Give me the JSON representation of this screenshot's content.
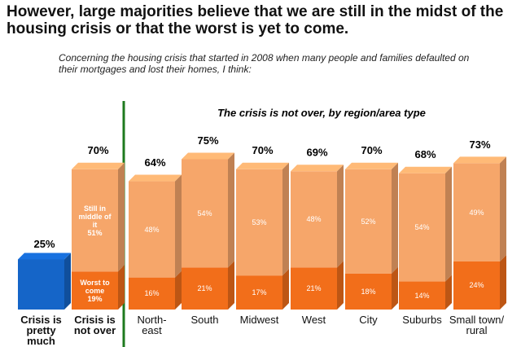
{
  "chart_data": {
    "type": "bar",
    "stacked": true,
    "title": "However, large majorities believe that we are still in the midst of the housing crisis or that the worst is yet to come.",
    "subtitle": "Concerning the housing crisis that started in 2008 when many people and families defaulted on their mortgages and lost their homes, I think:",
    "annotation": "The crisis is not over, by region/area type",
    "categories": [
      "Crisis is pretty much over",
      "Crisis is not over",
      "North-east",
      "South",
      "Midwest",
      "West",
      "City",
      "Suburbs",
      "Small town/ rural"
    ],
    "series": [
      {
        "color": "#1565c8",
        "values": [
          25,
          null,
          null,
          null,
          null,
          null,
          null,
          null,
          null
        ],
        "value_labels": [
          "25%",
          null,
          null,
          null,
          null,
          null,
          null,
          null,
          null
        ]
      },
      {
        "name": "Worst to come",
        "color": "#f26e1a",
        "values": [
          null,
          19,
          16,
          21,
          17,
          21,
          18,
          14,
          24
        ],
        "value_labels": [
          null,
          "19%",
          "16%",
          "21%",
          "17%",
          "21%",
          "18%",
          "14%",
          "24%"
        ]
      },
      {
        "name": "Still in middle of it",
        "color": "#f6a66a",
        "values": [
          null,
          51,
          48,
          54,
          53,
          48,
          52,
          54,
          49
        ],
        "value_labels": [
          null,
          "51%",
          "48%",
          "54%",
          "53%",
          "48%",
          "52%",
          "54%",
          "49%"
        ]
      }
    ],
    "totals": [
      null,
      70,
      64,
      75,
      70,
      69,
      70,
      68,
      73
    ],
    "total_labels": [
      null,
      "70%",
      "64%",
      "75%",
      "70%",
      "69%",
      "70%",
      "68%",
      "73%"
    ]
  }
}
